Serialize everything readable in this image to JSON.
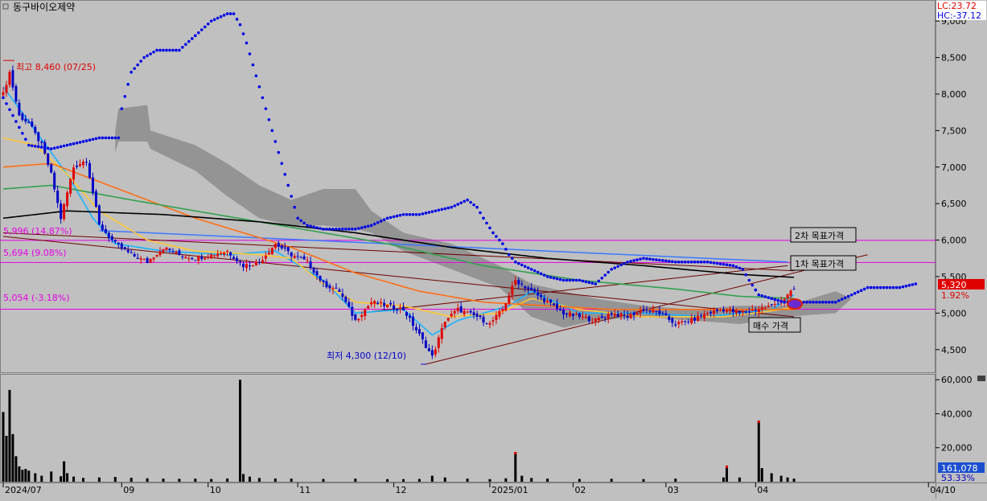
{
  "header": {
    "title": "동구바이오제약",
    "lc_label": "LC:23.72",
    "hc_label": "HC:-37.12"
  },
  "annotations": {
    "high": "최고 8,460 (07/25)",
    "low": "최저 4,300 (12/10)",
    "level_1": "5,996 (14.87%)",
    "level_2": "5,694 (9.08%)",
    "level_3": "5,054 (-3.18%)",
    "target_2": "2차 목표가격",
    "target_1": "1차 목표가격",
    "buy": "매수 가격",
    "current_price": "5,320",
    "current_change": "1.92%",
    "current_volume": "161,078",
    "volume_pct": "53.33%"
  },
  "colors": {
    "background": "#c0c0c0",
    "up_candle": "#e00000",
    "down_candle": "#0000c8",
    "ma5": "#19b4ff",
    "ma20": "#ffc832",
    "ma60": "#ff6e14",
    "ma120": "#32a050",
    "ma240": "#000000",
    "parabolic": "#0000e6",
    "cloud": "#8c8c8c",
    "level_line": "#e600e6",
    "trend_line": "#6e0000",
    "blue_line": "#3c78ff"
  },
  "chart_data": {
    "type": "candlestick",
    "price_axis": {
      "ylim": [
        4200,
        9200
      ],
      "ticks": [
        4500,
        5000,
        5500,
        6000,
        6500,
        7000,
        7500,
        8000,
        8500,
        9000
      ],
      "tick_labels": [
        "4,500",
        "5,000",
        "5,500",
        "6,000",
        "6,500",
        "7,000",
        "7,500",
        "8,000",
        "8,500",
        "9,000"
      ]
    },
    "volume_axis": {
      "ylim": [
        0,
        62000
      ],
      "ticks": [
        20000,
        40000,
        60000
      ],
      "tick_labels": [
        "20,000",
        "40,000",
        "60,000"
      ]
    },
    "x_axis": {
      "labels": [
        "2024/07",
        "09",
        "10",
        "11",
        "12",
        "2025/01",
        "02",
        "03",
        "04",
        "04/10"
      ]
    },
    "levels": [
      5996,
      5694,
      5054
    ],
    "high_point": 8460,
    "low_point": 4300,
    "current": 5320,
    "close_path": [
      [
        0,
        8000
      ],
      [
        2,
        8300
      ],
      [
        5,
        7700
      ],
      [
        8,
        7600
      ],
      [
        12,
        7300
      ],
      [
        15,
        6900
      ],
      [
        18,
        6300
      ],
      [
        22,
        7000
      ],
      [
        26,
        7100
      ],
      [
        30,
        6200
      ],
      [
        35,
        5950
      ],
      [
        40,
        5800
      ],
      [
        45,
        5700
      ],
      [
        50,
        5900
      ],
      [
        55,
        5800
      ],
      [
        60,
        5750
      ],
      [
        65,
        5800
      ],
      [
        70,
        5850
      ],
      [
        75,
        5650
      ],
      [
        80,
        5700
      ],
      [
        85,
        5950
      ],
      [
        90,
        5800
      ],
      [
        95,
        5700
      ],
      [
        100,
        5400
      ],
      [
        105,
        5300
      ],
      [
        110,
        4900
      ],
      [
        115,
        5150
      ],
      [
        120,
        5100
      ],
      [
        125,
        5050
      ],
      [
        130,
        4700
      ],
      [
        134,
        4400
      ],
      [
        138,
        4900
      ],
      [
        142,
        5050
      ],
      [
        148,
        4950
      ],
      [
        152,
        4850
      ],
      [
        156,
        5050
      ],
      [
        160,
        5450
      ],
      [
        165,
        5300
      ],
      [
        170,
        5150
      ],
      [
        175,
        5000
      ],
      [
        180,
        4950
      ],
      [
        185,
        4900
      ],
      [
        190,
        5000
      ],
      [
        195,
        4950
      ],
      [
        200,
        5050
      ],
      [
        205,
        5000
      ],
      [
        210,
        4850
      ],
      [
        215,
        4900
      ],
      [
        220,
        5000
      ],
      [
        225,
        5050
      ],
      [
        230,
        5000
      ],
      [
        235,
        5050
      ],
      [
        240,
        5100
      ],
      [
        244,
        5200
      ],
      [
        247,
        5320
      ]
    ],
    "series": [
      {
        "name": "ma5",
        "values": [
          [
            0,
            8100
          ],
          [
            10,
            7500
          ],
          [
            20,
            6900
          ],
          [
            28,
            6300
          ],
          [
            35,
            5950
          ],
          [
            50,
            5850
          ],
          [
            70,
            5800
          ],
          [
            85,
            5850
          ],
          [
            100,
            5450
          ],
          [
            110,
            5000
          ],
          [
            125,
            5050
          ],
          [
            134,
            4700
          ],
          [
            142,
            4900
          ],
          [
            158,
            5100
          ],
          [
            165,
            5300
          ],
          [
            180,
            5000
          ],
          [
            200,
            5000
          ],
          [
            220,
            4950
          ],
          [
            240,
            5050
          ],
          [
            247,
            5250
          ]
        ]
      },
      {
        "name": "ma20",
        "values": [
          [
            0,
            7400
          ],
          [
            10,
            7300
          ],
          [
            20,
            6900
          ],
          [
            30,
            6400
          ],
          [
            45,
            6000
          ],
          [
            60,
            5850
          ],
          [
            80,
            5800
          ],
          [
            90,
            5750
          ],
          [
            100,
            5400
          ],
          [
            110,
            5150
          ],
          [
            125,
            5100
          ],
          [
            140,
            4950
          ],
          [
            155,
            5000
          ],
          [
            165,
            5200
          ],
          [
            180,
            5050
          ],
          [
            200,
            4950
          ],
          [
            225,
            4950
          ],
          [
            240,
            5030
          ],
          [
            247,
            5080
          ]
        ]
      },
      {
        "name": "ma60",
        "values": [
          [
            0,
            7000
          ],
          [
            15,
            7050
          ],
          [
            30,
            6800
          ],
          [
            60,
            6300
          ],
          [
            90,
            5900
          ],
          [
            110,
            5550
          ],
          [
            130,
            5300
          ],
          [
            150,
            5150
          ],
          [
            170,
            5100
          ],
          [
            190,
            5050
          ],
          [
            210,
            5050
          ],
          [
            230,
            5050
          ],
          [
            247,
            5050
          ]
        ]
      },
      {
        "name": "ma120",
        "values": [
          [
            0,
            6700
          ],
          [
            15,
            6750
          ],
          [
            40,
            6550
          ],
          [
            80,
            6250
          ],
          [
            120,
            5950
          ],
          [
            150,
            5650
          ],
          [
            180,
            5450
          ],
          [
            210,
            5330
          ],
          [
            230,
            5230
          ],
          [
            247,
            5200
          ]
        ]
      },
      {
        "name": "ma240",
        "values": [
          [
            0,
            6300
          ],
          [
            20,
            6400
          ],
          [
            50,
            6350
          ],
          [
            80,
            6250
          ],
          [
            110,
            6100
          ],
          [
            140,
            5900
          ],
          [
            170,
            5750
          ],
          [
            200,
            5650
          ],
          [
            230,
            5530
          ],
          [
            247,
            5490
          ]
        ]
      }
    ],
    "parabolic_sar": [
      [
        0,
        7950
      ],
      [
        8,
        7300
      ],
      [
        15,
        7250
      ],
      [
        20,
        7300
      ],
      [
        25,
        7350
      ],
      [
        30,
        7400
      ],
      [
        36,
        7400
      ],
      [
        37,
        7800
      ],
      [
        40,
        8300
      ],
      [
        44,
        8500
      ],
      [
        48,
        8600
      ],
      [
        55,
        8600
      ],
      [
        60,
        8800
      ],
      [
        65,
        9000
      ],
      [
        70,
        9100
      ],
      [
        72,
        9100
      ],
      [
        74,
        8950
      ],
      [
        76,
        8700
      ],
      [
        78,
        8400
      ],
      [
        80,
        8100
      ],
      [
        82,
        7800
      ],
      [
        84,
        7500
      ],
      [
        86,
        7200
      ],
      [
        88,
        6900
      ],
      [
        90,
        6600
      ],
      [
        92,
        6300
      ],
      [
        95,
        6200
      ],
      [
        100,
        6150
      ],
      [
        110,
        6150
      ],
      [
        115,
        6200
      ],
      [
        120,
        6300
      ],
      [
        125,
        6350
      ],
      [
        130,
        6350
      ],
      [
        135,
        6400
      ],
      [
        140,
        6450
      ],
      [
        145,
        6550
      ],
      [
        148,
        6450
      ],
      [
        150,
        6300
      ],
      [
        153,
        6100
      ],
      [
        156,
        5950
      ],
      [
        158,
        5800
      ],
      [
        160,
        5700
      ],
      [
        165,
        5600
      ],
      [
        170,
        5500
      ],
      [
        175,
        5450
      ],
      [
        180,
        5450
      ],
      [
        185,
        5400
      ],
      [
        190,
        5600
      ],
      [
        195,
        5700
      ],
      [
        200,
        5750
      ],
      [
        210,
        5700
      ],
      [
        220,
        5700
      ],
      [
        228,
        5650
      ],
      [
        231,
        5600
      ],
      [
        233,
        5450
      ],
      [
        236,
        5250
      ],
      [
        240,
        5200
      ],
      [
        244,
        5150
      ],
      [
        260,
        5150
      ],
      [
        265,
        5250
      ],
      [
        270,
        5350
      ],
      [
        280,
        5350
      ],
      [
        285,
        5400
      ]
    ],
    "cloud": [
      [
        35,
        7500,
        7200
      ],
      [
        36,
        7800,
        7350
      ],
      [
        45,
        7850,
        7350
      ],
      [
        46,
        7500,
        7250
      ],
      [
        60,
        7300,
        6950
      ],
      [
        70,
        7050,
        6600
      ],
      [
        80,
        6750,
        6300
      ],
      [
        90,
        6550,
        6200
      ],
      [
        100,
        6700,
        6200
      ],
      [
        110,
        6700,
        6150
      ],
      [
        115,
        6400,
        6100
      ],
      [
        125,
        6100,
        5850
      ],
      [
        140,
        5950,
        5600
      ],
      [
        155,
        5650,
        5350
      ],
      [
        165,
        5400,
        4950
      ],
      [
        175,
        5300,
        4800
      ],
      [
        185,
        5200,
        4900
      ],
      [
        200,
        5100,
        4950
      ],
      [
        215,
        5050,
        4900
      ],
      [
        230,
        5100,
        4850
      ],
      [
        245,
        5100,
        4950
      ],
      [
        260,
        5300,
        5000
      ],
      [
        265,
        5200,
        5200
      ],
      [
        270,
        5200,
        5200
      ]
    ],
    "trend_lines": [
      [
        [
          0,
          6100
        ],
        [
          247,
          5580
        ]
      ],
      [
        [
          132,
          4300
        ],
        [
          270,
          5800
        ]
      ],
      [
        [
          0,
          6050
        ],
        [
          247,
          4950
        ]
      ],
      [
        [
          115,
          5020
        ],
        [
          245,
          5650
        ]
      ]
    ],
    "blue_line": [
      [
        30,
        6130
      ],
      [
        245,
        5700
      ]
    ],
    "volume_bars": [
      [
        0,
        41000
      ],
      [
        1,
        27000
      ],
      [
        2,
        54000
      ],
      [
        3,
        28000
      ],
      [
        4,
        15000
      ],
      [
        5,
        9000
      ],
      [
        6,
        7000
      ],
      [
        7,
        7500
      ],
      [
        8,
        6500
      ],
      [
        10,
        5000
      ],
      [
        12,
        3500
      ],
      [
        15,
        6000
      ],
      [
        18,
        3200
      ],
      [
        19,
        12000
      ],
      [
        20,
        5000
      ],
      [
        22,
        3000
      ],
      [
        25,
        2200
      ],
      [
        30,
        2500
      ],
      [
        35,
        2800
      ],
      [
        40,
        2300
      ],
      [
        45,
        2000
      ],
      [
        50,
        1800
      ],
      [
        55,
        1700
      ],
      [
        60,
        1800
      ],
      [
        65,
        1600
      ],
      [
        70,
        1900
      ],
      [
        74,
        60000
      ],
      [
        75,
        4500
      ],
      [
        77,
        3000
      ],
      [
        80,
        2200
      ],
      [
        85,
        1900
      ],
      [
        90,
        1800
      ],
      [
        100,
        1600
      ],
      [
        110,
        1800
      ],
      [
        120,
        1500
      ],
      [
        125,
        1500
      ],
      [
        130,
        1600
      ],
      [
        134,
        3500
      ],
      [
        138,
        2500
      ],
      [
        145,
        1800
      ],
      [
        152,
        1500
      ],
      [
        157,
        2000
      ],
      [
        160,
        17500
      ],
      [
        162,
        3500
      ],
      [
        165,
        2200
      ],
      [
        170,
        1800
      ],
      [
        180,
        1600
      ],
      [
        190,
        1700
      ],
      [
        200,
        1500
      ],
      [
        210,
        1800
      ],
      [
        225,
        2500
      ],
      [
        226,
        9500
      ],
      [
        230,
        2500
      ],
      [
        236,
        36000
      ],
      [
        237,
        8000
      ],
      [
        240,
        5000
      ],
      [
        243,
        3500
      ],
      [
        245,
        2500
      ],
      [
        247,
        1800
      ]
    ]
  }
}
